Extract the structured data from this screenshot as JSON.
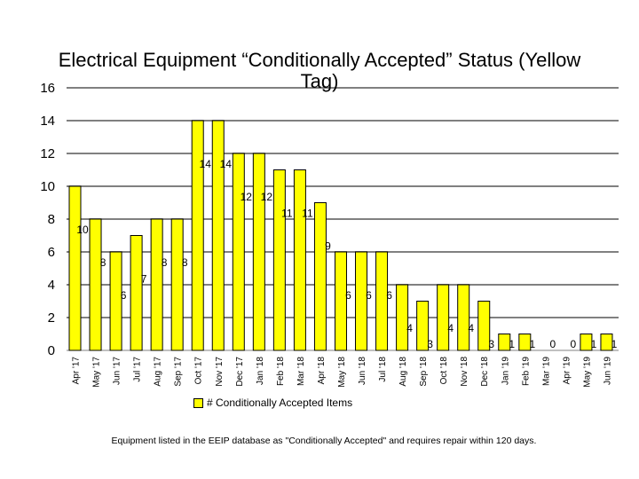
{
  "chart_data": {
    "type": "bar",
    "title": "Electrical Equipment “Conditionally Accepted” Status (Yellow Tag)",
    "categories": [
      "Apr '17",
      "May '17",
      "Jun '17",
      "Jul '17",
      "Aug '17",
      "Sep '17",
      "Oct '17",
      "Nov '17",
      "Dec '17",
      "Jan '18",
      "Feb '18",
      "Mar '18",
      "Apr '18",
      "May '18",
      "Jun '18",
      "Jul '18",
      "Aug '18",
      "Sep '18",
      "Oct '18",
      "Nov '18",
      "Dec '18",
      "Jan '19",
      "Feb '19",
      "Mar '19",
      "Apr '19",
      "May '19",
      "Jun '19"
    ],
    "series": [
      {
        "name": "# Conditionally Accepted Items",
        "values": [
          10,
          8,
          6,
          7,
          8,
          8,
          14,
          14,
          12,
          12,
          11,
          11,
          9,
          6,
          6,
          6,
          4,
          3,
          4,
          4,
          3,
          1,
          1,
          0,
          0,
          1,
          1
        ],
        "color": "#ffff00"
      }
    ],
    "ylim": [
      0,
      16
    ],
    "yticks": [
      0,
      2,
      4,
      6,
      8,
      10,
      12,
      14,
      16
    ],
    "grid": true,
    "legend_position": "bottom"
  },
  "footnote": "Equipment listed in the EEIP database as \"Conditionally Accepted\" and requires repair within 120 days."
}
